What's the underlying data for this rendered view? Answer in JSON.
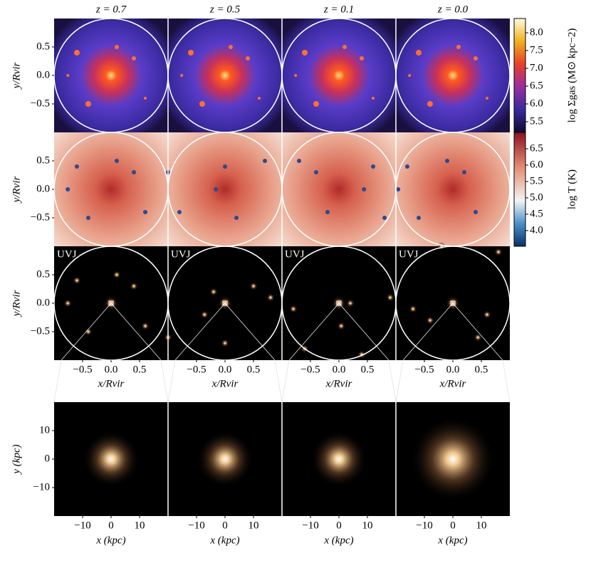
{
  "columns": [
    "z = 0.7",
    "z = 0.5",
    "z = 0.1",
    "z = 0.0"
  ],
  "panel_label": "UVJ",
  "virial_axes": {
    "xlabel": "x/Rvir",
    "ylabel": "y/Rvir",
    "xlim": [
      -1,
      1
    ],
    "ylim": [
      -1,
      1
    ],
    "xticks": [
      {
        "value": -0.5,
        "label": "−0.5"
      },
      {
        "value": 0,
        "label": "0.0"
      },
      0.5
    ],
    "yticks": [
      0.5,
      {
        "value": 0,
        "label": "0.0"
      },
      {
        "value": -0.5,
        "label": "−0.5"
      }
    ]
  },
  "kpc_axes": {
    "xlabel": "x (kpc)",
    "ylabel": "y (kpc)",
    "xlim": [
      -20,
      20
    ],
    "ylim": [
      -20,
      20
    ],
    "xticks": [
      {
        "value": -10,
        "label": "−10"
      },
      0,
      10
    ],
    "yticks": [
      10,
      0,
      {
        "value": -10,
        "label": "−10"
      }
    ]
  },
  "colorbars": [
    {
      "label": "log Σgas (M⊙ kpc−2)",
      "lim": [
        5.2,
        8.4
      ],
      "ticks": [
        5.5,
        {
          "value": 6,
          "label": "6.0"
        },
        6.5,
        {
          "value": 7,
          "label": "7.0"
        },
        7.5,
        {
          "value": 8,
          "label": "8.0"
        }
      ]
    },
    {
      "label": "log T (K)",
      "lim": [
        3.52,
        7.0
      ],
      "ticks": [
        {
          "value": 4,
          "label": "4.0"
        },
        4.5,
        {
          "value": 5,
          "label": "5.0"
        },
        5.5,
        {
          "value": 6,
          "label": "6.0"
        },
        6.5
      ]
    }
  ]
}
